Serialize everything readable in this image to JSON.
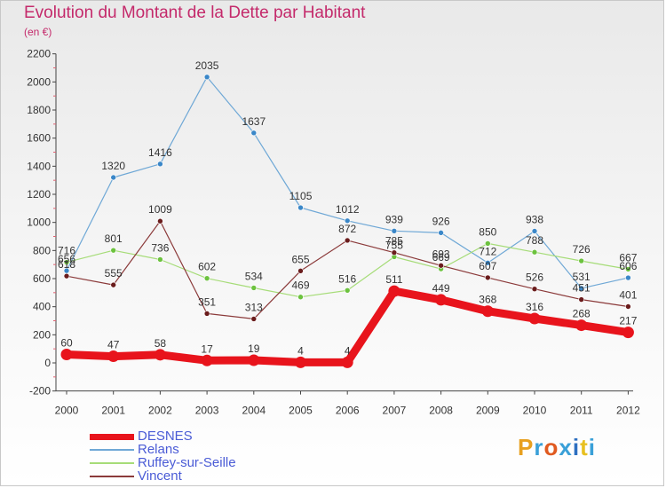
{
  "header": {
    "title": "Evolution du Montant de la Dette par Habitant",
    "unit": "(en €)"
  },
  "brand": {
    "text": "Proxiti",
    "colors": [
      "#e8a020",
      "#3aa0d8",
      "#e05a20",
      "#3aa0d8",
      "#2d6fc0",
      "#e8c020",
      "#3aa0d8"
    ]
  },
  "chart_data": {
    "type": "line",
    "title": "Evolution du Montant de la Dette par Habitant",
    "subtitle": "(en €)",
    "x": [
      "2000",
      "2001",
      "2002",
      "2003",
      "2004",
      "2005",
      "2006",
      "2007",
      "2008",
      "2009",
      "2010",
      "2011",
      "2012"
    ],
    "y_ticks": [
      -200,
      0,
      200,
      400,
      600,
      800,
      1000,
      1200,
      1400,
      1600,
      1800,
      2000,
      2200
    ],
    "ylim": [
      -200,
      2200
    ],
    "grid": false,
    "legend_position": "bottom-left",
    "series": [
      {
        "name": "Relans",
        "color": "#6fa8d6",
        "marker": "#3a87c8",
        "values": [
          656,
          1320,
          1416,
          2035,
          1637,
          1105,
          1012,
          939,
          926,
          712,
          938,
          531,
          606
        ],
        "labels": [
          "656",
          "1320",
          "1416",
          "2035",
          "1637",
          "1105",
          "1012",
          "939",
          "926",
          "712",
          "938",
          "531",
          "606"
        ]
      },
      {
        "name": "Ruffey-sur-Seille",
        "color": "#a6dc78",
        "marker": "#6cc23e",
        "values": [
          716,
          801,
          736,
          602,
          534,
          469,
          516,
          755,
          669,
          850,
          788,
          726,
          667
        ],
        "labels": [
          "716",
          "801",
          "736",
          "602",
          "534",
          "469",
          "516",
          "755",
          "669",
          "850",
          "788",
          "726",
          "667"
        ]
      },
      {
        "name": "Vincent",
        "color": "#8b3a3a",
        "marker": "#6a1c1c",
        "values": [
          618,
          555,
          1009,
          351,
          313,
          655,
          872,
          785,
          693,
          607,
          526,
          451,
          401
        ],
        "labels": [
          "618",
          "555",
          "1009",
          "351",
          "313",
          "655",
          "872",
          "785",
          "693",
          "607",
          "526",
          "451",
          "401"
        ]
      },
      {
        "name": "DESNES",
        "color": "#e8141c",
        "marker": "#e8141c",
        "values": [
          60,
          47,
          58,
          17,
          19,
          4,
          4,
          511,
          449,
          368,
          316,
          268,
          217
        ],
        "labels": [
          "60",
          "47",
          "58",
          "17",
          "19",
          "4",
          "4",
          "511",
          "449",
          "368",
          "316",
          "268",
          "217"
        ]
      }
    ]
  },
  "legend": [
    {
      "name": "DESNES",
      "color": "#e8141c"
    },
    {
      "name": "Relans",
      "color": "#6fa8d6"
    },
    {
      "name": "Ruffey-sur-Seille",
      "color": "#a6dc78"
    },
    {
      "name": "Vincent",
      "color": "#8b3a3a"
    }
  ]
}
